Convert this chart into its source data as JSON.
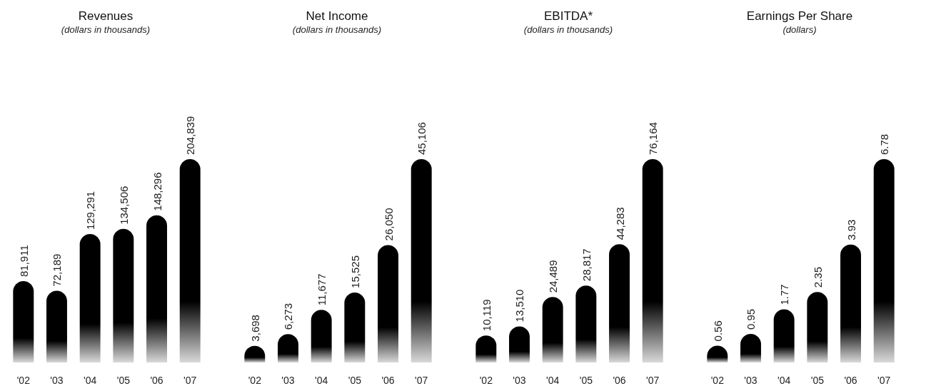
{
  "chart_data": [
    {
      "type": "bar",
      "title": "Revenues",
      "subtitle": "(dollars in thousands)",
      "categories": [
        "'02",
        "'03",
        "'04",
        "'05",
        "'06",
        "'07"
      ],
      "values": [
        81911,
        72189,
        129291,
        134506,
        148296,
        204839
      ],
      "value_labels": [
        "81,911",
        "72,189",
        "129,291",
        "134,506",
        "148,296",
        "204,839"
      ],
      "color": "#000000"
    },
    {
      "type": "bar",
      "title": "Net Income",
      "subtitle": "(dollars in thousands)",
      "categories": [
        "'02",
        "'03",
        "'04",
        "'05",
        "'06",
        "'07"
      ],
      "values": [
        3698,
        6273,
        11677,
        15525,
        26050,
        45106
      ],
      "value_labels": [
        "3,698",
        "6,273",
        "11,677",
        "15,525",
        "26,050",
        "45,106"
      ],
      "color": "#000000"
    },
    {
      "type": "bar",
      "title": "EBITDA*",
      "subtitle": "(dollars in thousands)",
      "categories": [
        "'02",
        "'03",
        "'04",
        "'05",
        "'06",
        "'07"
      ],
      "values": [
        10119,
        13510,
        24489,
        28817,
        44283,
        76164
      ],
      "value_labels": [
        "10,119",
        "13,510",
        "24,489",
        "28,817",
        "44,283",
        "76,164"
      ],
      "color": "#000000"
    },
    {
      "type": "bar",
      "title": "Earnings Per Share",
      "subtitle": "(dollars)",
      "categories": [
        "'02",
        "'03",
        "'04",
        "'05",
        "'06",
        "'07"
      ],
      "values": [
        0.56,
        0.95,
        1.77,
        2.35,
        3.93,
        6.78
      ],
      "value_labels": [
        "0.56",
        "0.95",
        "1.77",
        "2.35",
        "3.93",
        "6.78"
      ],
      "color": "#000000"
    }
  ]
}
